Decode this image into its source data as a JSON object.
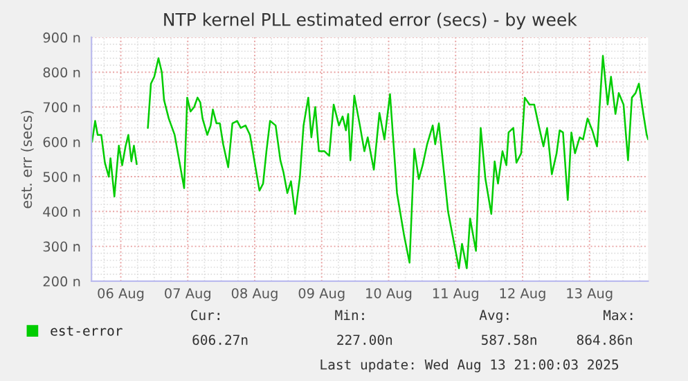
{
  "chart_data": {
    "type": "line",
    "title": "NTP kernel PLL estimated error (secs) - by week",
    "ylabel": "est. err (secs)",
    "x": [
      "2025-08-05T13:42",
      "2025-08-05T14:48",
      "2025-08-05T15:42",
      "2025-08-05T17:00",
      "2025-08-05T18:18",
      "2025-08-05T19:42",
      "2025-08-05T20:18",
      "2025-08-05T21:42",
      "2025-08-05T23:18",
      "2025-08-06T00:30",
      "2025-08-06T01:42",
      "2025-08-06T02:42",
      "2025-08-06T03:48",
      "2025-08-06T04:42",
      "2025-08-06T05:42",
      "2025-08-06T07:30",
      "2025-08-06T09:42",
      "2025-08-06T10:48",
      "2025-08-06T12:00",
      "2025-08-06T13:30",
      "2025-08-06T14:42",
      "2025-08-06T15:30",
      "2025-08-06T17:12",
      "2025-08-06T19:18",
      "2025-08-06T22:42",
      "2025-08-06T23:48",
      "2025-08-07T01:00",
      "2025-08-07T02:18",
      "2025-08-07T03:30",
      "2025-08-07T04:30",
      "2025-08-07T05:18",
      "2025-08-07T07:00",
      "2025-08-07T08:12",
      "2025-08-07T09:00",
      "2025-08-07T10:18",
      "2025-08-07T11:30",
      "2025-08-07T12:42",
      "2025-08-07T14:30",
      "2025-08-07T16:00",
      "2025-08-07T17:42",
      "2025-08-07T19:00",
      "2025-08-07T20:42",
      "2025-08-07T22:18",
      "2025-08-08T00:00",
      "2025-08-08T01:42",
      "2025-08-08T03:00",
      "2025-08-08T04:12",
      "2025-08-08T05:30",
      "2025-08-08T07:30",
      "2025-08-08T09:12",
      "2025-08-08T10:18",
      "2025-08-08T11:42",
      "2025-08-08T13:00",
      "2025-08-08T14:30",
      "2025-08-08T16:12",
      "2025-08-08T17:30",
      "2025-08-08T19:12",
      "2025-08-08T20:18",
      "2025-08-08T21:42",
      "2025-08-08T23:00",
      "2025-08-09T01:00",
      "2025-08-09T02:42",
      "2025-08-09T04:18",
      "2025-08-09T06:12",
      "2025-08-09T07:30",
      "2025-08-09T08:42",
      "2025-08-09T09:30",
      "2025-08-09T10:18",
      "2025-08-09T11:42",
      "2025-08-09T13:42",
      "2025-08-09T15:18",
      "2025-08-09T16:30",
      "2025-08-09T18:42",
      "2025-08-09T20:42",
      "2025-08-09T22:30",
      "2025-08-10T00:30",
      "2025-08-10T03:00",
      "2025-08-10T05:30",
      "2025-08-10T07:30",
      "2025-08-10T09:12",
      "2025-08-10T10:48",
      "2025-08-10T12:12",
      "2025-08-10T13:48",
      "2025-08-10T15:48",
      "2025-08-10T16:42",
      "2025-08-10T18:00",
      "2025-08-10T21:18",
      "2025-08-10T23:30",
      "2025-08-11T01:12",
      "2025-08-11T02:18",
      "2025-08-11T04:00",
      "2025-08-11T05:12",
      "2025-08-11T07:18",
      "2025-08-11T09:00",
      "2025-08-11T10:42",
      "2025-08-11T12:48",
      "2025-08-11T14:00",
      "2025-08-11T15:12",
      "2025-08-11T16:48",
      "2025-08-11T18:12",
      "2025-08-11T19:00",
      "2025-08-11T20:42",
      "2025-08-11T21:48",
      "2025-08-11T23:30",
      "2025-08-12T00:48",
      "2025-08-12T02:30",
      "2025-08-12T04:12",
      "2025-08-12T05:48",
      "2025-08-12T07:30",
      "2025-08-12T08:48",
      "2025-08-12T10:30",
      "2025-08-12T12:12",
      "2025-08-12T13:18",
      "2025-08-12T14:30",
      "2025-08-12T16:12",
      "2025-08-12T17:30",
      "2025-08-12T18:48",
      "2025-08-12T20:30",
      "2025-08-12T21:42",
      "2025-08-12T23:18",
      "2025-08-13T01:00",
      "2025-08-13T02:42",
      "2025-08-13T04:48",
      "2025-08-13T06:30",
      "2025-08-13T07:42",
      "2025-08-13T09:18",
      "2025-08-13T10:30",
      "2025-08-13T12:12",
      "2025-08-13T13:48",
      "2025-08-13T15:12",
      "2025-08-13T16:30",
      "2025-08-13T17:42",
      "2025-08-13T19:18",
      "2025-08-13T20:30",
      "2025-08-13T21:00"
    ],
    "series": [
      {
        "name": "est-error",
        "color": "#00cc00",
        "values": [
          600,
          660,
          620,
          620,
          540,
          500,
          553,
          443,
          589,
          533,
          587,
          620,
          544,
          589,
          536,
          null,
          640,
          767,
          787,
          840,
          800,
          720,
          667,
          620,
          467,
          727,
          687,
          700,
          727,
          713,
          667,
          620,
          647,
          693,
          653,
          653,
          593,
          527,
          653,
          660,
          640,
          647,
          620,
          540,
          460,
          480,
          573,
          660,
          647,
          547,
          513,
          453,
          487,
          393,
          500,
          647,
          727,
          613,
          700,
          573,
          573,
          560,
          707,
          647,
          673,
          633,
          680,
          547,
          733,
          647,
          573,
          613,
          520,
          683,
          607,
          737,
          453,
          333,
          253,
          580,
          493,
          533,
          593,
          647,
          593,
          653,
          400,
          307,
          237,
          307,
          237,
          380,
          287,
          640,
          493,
          393,
          544,
          480,
          573,
          533,
          627,
          640,
          540,
          567,
          727,
          707,
          707,
          647,
          587,
          640,
          507,
          567,
          633,
          627,
          433,
          627,
          567,
          613,
          607,
          667,
          633,
          587,
          847,
          707,
          787,
          680,
          740,
          707,
          547,
          727,
          740,
          767,
          680,
          620,
          607
        ]
      }
    ],
    "xlim": [
      "2025-08-05T13:30",
      "2025-08-13T21:00"
    ],
    "xticks": [
      {
        "value": "2025-08-06",
        "label": "06 Aug"
      },
      {
        "value": "2025-08-07",
        "label": "07 Aug"
      },
      {
        "value": "2025-08-08",
        "label": "08 Aug"
      },
      {
        "value": "2025-08-09",
        "label": "09 Aug"
      },
      {
        "value": "2025-08-10",
        "label": "10 Aug"
      },
      {
        "value": "2025-08-11",
        "label": "11 Aug"
      },
      {
        "value": "2025-08-12",
        "label": "12 Aug"
      },
      {
        "value": "2025-08-13",
        "label": "13 Aug"
      }
    ],
    "ylim": [
      200,
      900
    ],
    "yticks": [
      {
        "value": 200,
        "label": "200 n"
      },
      {
        "value": 300,
        "label": "300 n"
      },
      {
        "value": 400,
        "label": "400 n"
      },
      {
        "value": 500,
        "label": "500 n"
      },
      {
        "value": 600,
        "label": "600 n"
      },
      {
        "value": 700,
        "label": "700 n"
      },
      {
        "value": 800,
        "label": "800 n"
      },
      {
        "value": 900,
        "label": "900 n"
      }
    ],
    "grid": true,
    "legend": "bottom left",
    "annotations": [
      "Cur:",
      "Min:",
      "Avg:",
      "Max:",
      "606.27n",
      "227.00n",
      "587.58n",
      "864.86n",
      "Last update: Wed Aug 13 21:00:03 2025"
    ]
  }
}
